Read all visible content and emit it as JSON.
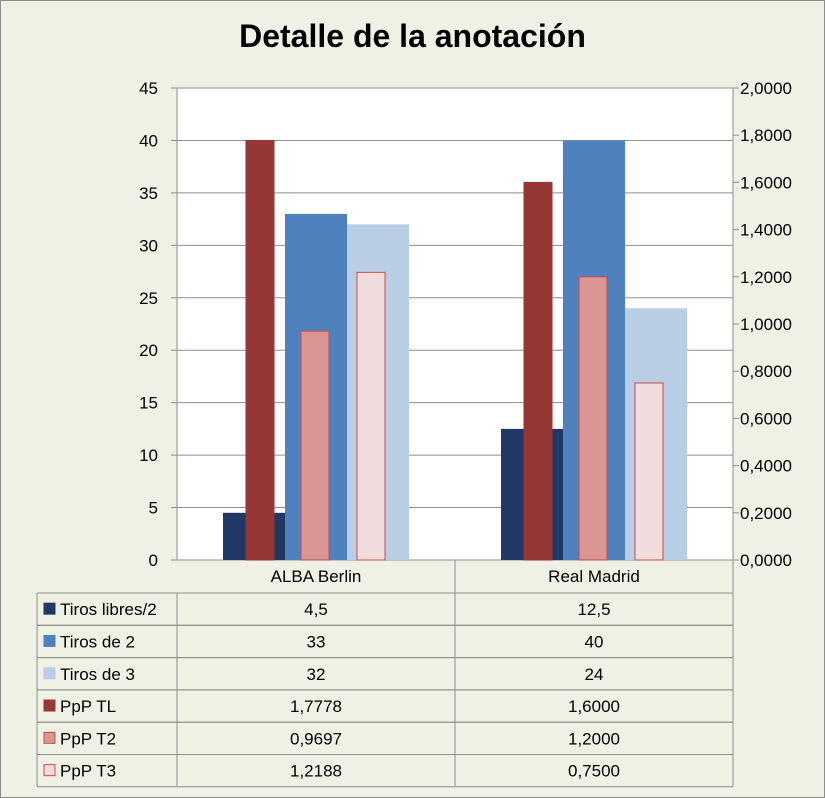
{
  "chart_data": {
    "type": "bar",
    "title": "Detalle de la anotación",
    "categories": [
      "ALBA Berlin",
      "Real Madrid"
    ],
    "y_left": {
      "range": [
        0,
        45
      ],
      "step": 5,
      "ticks": [
        "0",
        "5",
        "10",
        "15",
        "20",
        "25",
        "30",
        "35",
        "40",
        "45"
      ]
    },
    "y_right": {
      "range": [
        0,
        2
      ],
      "step": 0.2,
      "ticks": [
        "0,0000",
        "0,2000",
        "0,4000",
        "0,6000",
        "0,8000",
        "1,0000",
        "1,2000",
        "1,4000",
        "1,6000",
        "1,8000",
        "2,0000"
      ]
    },
    "grid": true,
    "legend": "data-table",
    "series": [
      {
        "name": "Tiros libres/2",
        "axis": "left",
        "values": [
          4.5,
          12.5
        ],
        "labels": [
          "4,5",
          "12,5"
        ],
        "color": "#1f3864",
        "border": "#1f3864"
      },
      {
        "name": "Tiros de 2",
        "axis": "left",
        "values": [
          33,
          40
        ],
        "labels": [
          "33",
          "40"
        ],
        "color": "#4f81bd",
        "border": "#4f81bd"
      },
      {
        "name": "Tiros de 3",
        "axis": "left",
        "values": [
          32,
          24
        ],
        "labels": [
          "32",
          "24"
        ],
        "color": "#b9cde5",
        "border": "#b9cde5"
      },
      {
        "name": "PpP TL",
        "axis": "right",
        "values": [
          1.7778,
          1.6
        ],
        "labels": [
          "1,7778",
          "1,6000"
        ],
        "color": "#953735",
        "border": "#953735"
      },
      {
        "name": "PpP T2",
        "axis": "right",
        "values": [
          0.9697,
          1.2
        ],
        "labels": [
          "0,9697",
          "1,2000"
        ],
        "color": "#d99694",
        "border": "#c0504d"
      },
      {
        "name": "PpP T3",
        "axis": "right",
        "values": [
          1.2188,
          0.75
        ],
        "labels": [
          "1,2188",
          "0,7500"
        ],
        "color": "#f2dcdb",
        "border": "#c0504d"
      }
    ]
  }
}
